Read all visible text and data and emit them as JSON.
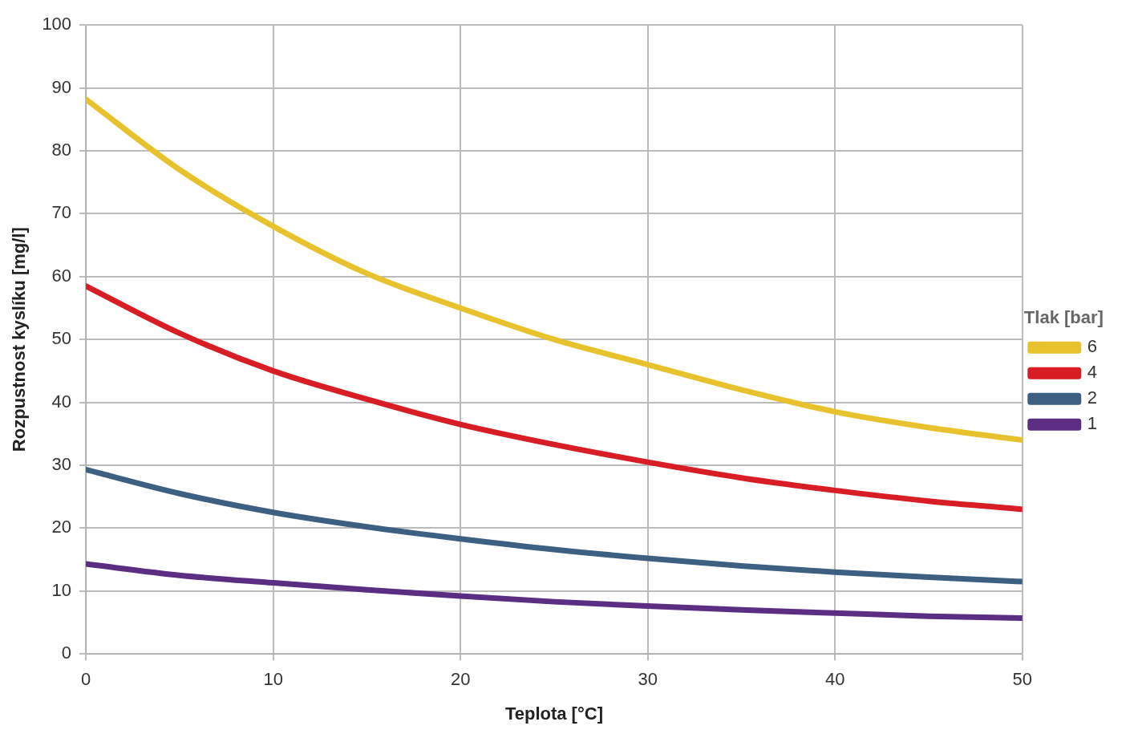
{
  "chart_data": {
    "type": "line",
    "xlabel": "Teplota [°C]",
    "ylabel": "Rozpustnost kyslíku [mg/l]",
    "legend_title": "Tlak [bar]",
    "x": [
      0,
      5,
      10,
      15,
      20,
      25,
      30,
      35,
      40,
      45,
      50
    ],
    "series": [
      {
        "name": "6",
        "color": "#e8c22c",
        "values": [
          88.2,
          77,
          68,
          60.5,
          55,
          50,
          46,
          42,
          38.5,
          36,
          34
        ]
      },
      {
        "name": "4",
        "color": "#d81e24",
        "values": [
          58.5,
          51,
          45,
          40.5,
          36.5,
          33.3,
          30.5,
          28,
          26,
          24.3,
          23
        ]
      },
      {
        "name": "2",
        "color": "#3d5f82",
        "values": [
          29.3,
          25.5,
          22.5,
          20.2,
          18.3,
          16.6,
          15.2,
          14,
          13,
          12.2,
          11.5
        ]
      },
      {
        "name": "1",
        "color": "#5b2d83",
        "values": [
          14.3,
          12.5,
          11.3,
          10.2,
          9.2,
          8.3,
          7.6,
          7,
          6.5,
          6,
          5.7
        ]
      }
    ],
    "xlim": [
      0,
      50
    ],
    "xticks": [
      0,
      10,
      20,
      30,
      40,
      50
    ],
    "ylim": [
      0,
      100
    ],
    "yticks": [
      0,
      10,
      20,
      30,
      40,
      50,
      60,
      70,
      80,
      90,
      100
    ],
    "grid": true,
    "legend": "right",
    "marker": "none",
    "line_style": "solid"
  }
}
